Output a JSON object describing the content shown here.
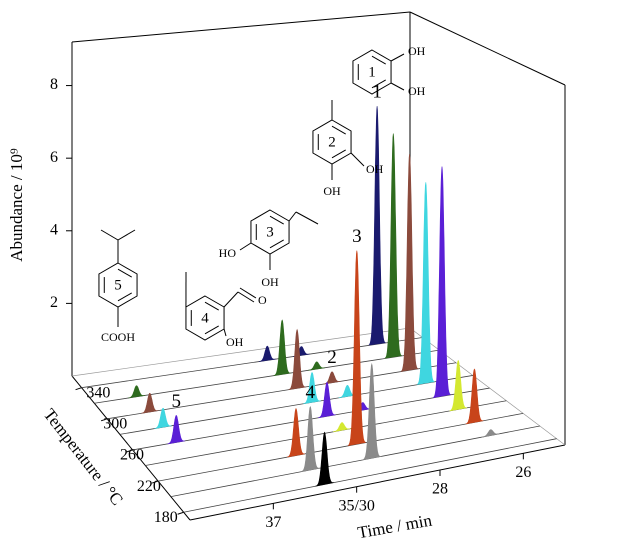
{
  "chart_data": {
    "type": "waterfall3d",
    "xlabel": "Time / min",
    "ylabel": "Abundance / 10⁹",
    "zlabel": "Temperature / °C",
    "xlim": [
      39,
      25
    ],
    "x_break": [
      30,
      35
    ],
    "xticks": [
      37,
      {
        "value": 35,
        "label": "35/30"
      },
      28,
      26
    ],
    "ylim": [
      0,
      9.2
    ],
    "yticks": [
      2,
      4,
      6,
      8
    ],
    "zlim": [
      170,
      355
    ],
    "zticks": [
      180,
      220,
      260,
      300,
      340
    ],
    "x": [
      37.9,
      35.6,
      29.1,
      28.2,
      26.2
    ],
    "peak_labels": [
      "5",
      "4",
      "3",
      "2",
      "1"
    ],
    "series": [
      {
        "temperature": 180,
        "color": "#000000",
        "values": [
          null,
          1.3,
          null,
          null,
          null
        ]
      },
      {
        "temperature": 200,
        "color": "#8a8a8a",
        "values": [
          null,
          1.6,
          2.4,
          null,
          0.15
        ]
      },
      {
        "temperature": 220,
        "color": "#c8441a",
        "values": [
          null,
          1.2,
          5.0,
          null,
          1.4
        ]
      },
      {
        "temperature": 240,
        "color": "#d4e830",
        "values": [
          null,
          null,
          0.2,
          null,
          1.3
        ]
      },
      {
        "temperature": 260,
        "color": "#5a1fd6",
        "values": [
          0.7,
          null,
          0.9,
          0.2,
          6.2
        ]
      },
      {
        "temperature": 280,
        "color": "#3fd6e0",
        "values": [
          0.5,
          null,
          0.8,
          0.3,
          5.5
        ]
      },
      {
        "temperature": 300,
        "color": "#8b4a3c",
        "values": [
          0.5,
          null,
          1.6,
          0.3,
          6.0
        ]
      },
      {
        "temperature": 320,
        "color": "#2e6b1e",
        "values": [
          0.3,
          null,
          1.5,
          0.2,
          6.3
        ]
      },
      {
        "temperature": 340,
        "color": "#1a1a6e",
        "values": [
          null,
          null,
          0.4,
          0.25,
          6.8
        ]
      }
    ]
  },
  "structures": [
    {
      "number": "1",
      "groups": [
        "OH",
        "OH"
      ]
    },
    {
      "number": "2",
      "groups": [
        "OH",
        "OH"
      ]
    },
    {
      "number": "3",
      "groups": [
        "HO",
        "OH"
      ]
    },
    {
      "number": "4",
      "groups": [
        "O",
        "OH"
      ]
    },
    {
      "number": "5",
      "groups": [
        "COOH"
      ]
    }
  ]
}
